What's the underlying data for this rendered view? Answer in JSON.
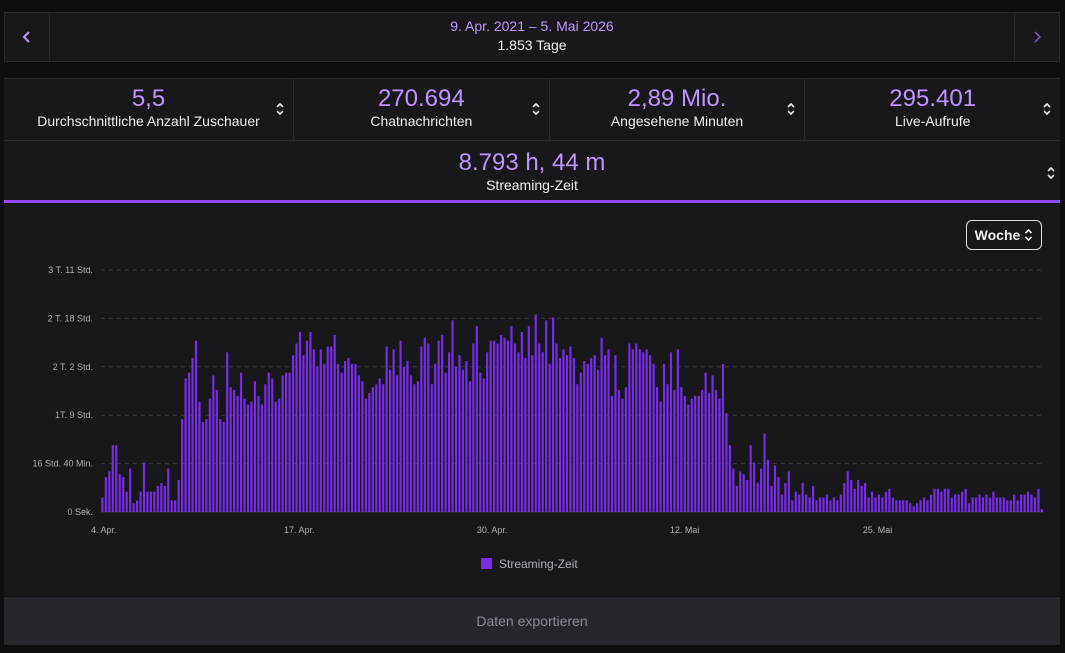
{
  "date_range": {
    "label": "9. Apr. 2021 – 5. Mai 2026",
    "days": "1.853 Tage",
    "prev_icon": "chevron-left-icon",
    "next_icon": "chevron-right-icon"
  },
  "stats": [
    {
      "value": "5,5",
      "label": "Durchschnittliche Anzahl Zuschauer"
    },
    {
      "value": "270.694",
      "label": "Chatnachrichten"
    },
    {
      "value": "2,89 Mio.",
      "label": "Angesehene Minuten"
    },
    {
      "value": "295.401",
      "label": "Live-Aufrufe"
    }
  ],
  "selected_stat": {
    "value": "8.793 h, 44 m",
    "label": "Streaming-Zeit"
  },
  "period_select": {
    "value": "Woche"
  },
  "export_button": "Daten exportieren",
  "colors": {
    "accent": "#9147ff",
    "accent_text": "#bf94ff",
    "bar": "#772ce8"
  },
  "chart_data": {
    "type": "bar",
    "y_tick_labels": [
      "0 Sek.",
      "16 Std. 40 Min.",
      "1T. 9 Std.",
      "2 T. 2 Std.",
      "2 T. 18 Std.",
      "3 T. 11 Std."
    ],
    "x_tick_labels": [
      "4. Apr.",
      "17. Apr.",
      "30. Apr.",
      "12. Mai",
      "25. Mai"
    ],
    "series": [
      {
        "name": "Streaming-Zeit",
        "unit": "hours"
      }
    ],
    "y_range_hours": [
      0,
      83.33
    ],
    "grid": true,
    "legend_position": "bottom",
    "values": [
      5,
      12,
      14,
      23,
      23,
      13,
      12,
      7,
      15,
      3,
      4,
      7,
      17,
      7,
      7,
      7,
      9,
      10,
      9,
      15,
      4,
      4,
      11,
      32,
      46,
      48,
      53,
      59,
      38,
      31,
      32,
      39,
      47,
      42,
      32,
      31,
      55,
      43,
      42,
      40,
      48,
      39,
      37,
      38,
      45,
      40,
      37,
      44,
      48,
      46,
      38,
      39,
      47,
      48,
      48,
      54,
      58,
      62,
      54,
      59,
      62,
      56,
      50,
      56,
      51,
      57,
      57,
      61,
      51,
      48,
      52,
      53,
      51,
      51,
      47,
      45,
      39,
      41,
      43,
      44,
      46,
      44,
      57,
      49,
      56,
      47,
      59,
      50,
      52,
      47,
      44,
      45,
      57,
      60,
      58,
      44,
      51,
      59,
      61,
      48,
      55,
      66,
      50,
      54,
      49,
      52,
      45,
      58,
      64,
      48,
      46,
      55,
      59,
      59,
      58,
      61,
      60,
      59,
      64,
      58,
      55,
      62,
      53,
      64,
      54,
      68,
      58,
      55,
      66,
      51,
      67,
      58,
      53,
      56,
      54,
      57,
      53,
      44,
      48,
      52,
      51,
      53,
      54,
      49,
      60,
      54,
      56,
      40,
      54,
      42,
      39,
      43,
      58,
      56,
      58,
      56,
      55,
      56,
      54,
      51,
      43,
      38,
      51,
      44,
      55,
      42,
      56,
      43,
      40,
      37,
      39,
      40,
      40,
      42,
      48,
      41,
      47,
      42,
      39,
      51,
      34,
      23,
      15,
      9,
      14,
      13,
      11,
      23,
      17,
      10,
      15,
      27,
      18,
      9,
      16,
      12,
      6,
      10,
      14,
      4,
      7,
      6,
      10,
      6,
      5,
      9,
      4,
      5,
      5,
      6,
      4,
      5,
      4,
      6,
      10,
      14,
      11,
      8,
      11,
      9,
      10,
      5,
      7,
      5,
      6,
      5,
      7,
      8,
      5,
      4,
      4,
      4,
      4,
      3,
      2,
      3,
      4,
      5,
      4,
      6,
      8,
      8,
      7,
      8,
      8,
      5,
      6,
      6,
      7,
      8,
      3,
      5,
      5,
      6,
      5,
      6,
      5,
      7,
      5,
      5,
      5,
      4,
      4,
      6,
      4,
      6,
      6,
      7,
      6,
      5,
      8,
      1
    ]
  }
}
